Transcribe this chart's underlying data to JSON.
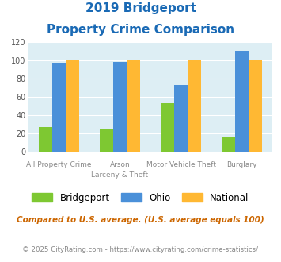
{
  "title_line1": "2019 Bridgeport",
  "title_line2": "Property Crime Comparison",
  "cat_labels_line1": [
    "All Property Crime",
    "Arson",
    "Motor Vehicle Theft",
    "Burglary"
  ],
  "cat_labels_line2": [
    "",
    "Larceny & Theft",
    "",
    ""
  ],
  "bridgeport": [
    27,
    25,
    53,
    17
  ],
  "ohio": [
    97,
    98,
    73,
    110
  ],
  "national": [
    100,
    100,
    100,
    100
  ],
  "color_bridgeport": "#7ec832",
  "color_ohio": "#4a90d9",
  "color_national": "#ffb833",
  "ylim": [
    0,
    120
  ],
  "yticks": [
    0,
    20,
    40,
    60,
    80,
    100,
    120
  ],
  "bg_color": "#ddeef4",
  "legend_labels": [
    "Bridgeport",
    "Ohio",
    "National"
  ],
  "footnote1": "Compared to U.S. average. (U.S. average equals 100)",
  "footnote2": "© 2025 CityRating.com - https://www.cityrating.com/crime-statistics/",
  "title_color": "#1a6ab5",
  "footnote1_color": "#cc6600",
  "footnote2_color": "#888888",
  "xlabel_color": "#888888"
}
